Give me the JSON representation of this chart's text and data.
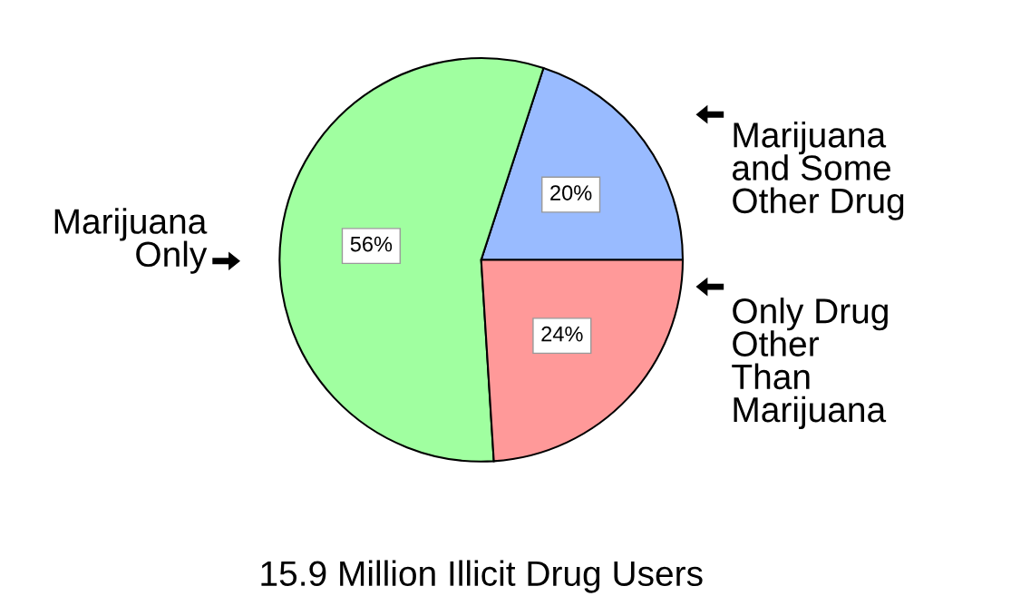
{
  "chart_data": {
    "type": "pie",
    "title": "15.9 Million Illicit Drug Users",
    "categories": [
      "Marijuana\nand Some\nOther Drug",
      "Marijuana\nOnly",
      "Only Drug\nOther\nThan\nMarijuana"
    ],
    "values": [
      20,
      56,
      24
    ],
    "colors": [
      "#99bbff",
      "#a0ffa0",
      "#ff9999"
    ],
    "value_labels": [
      "20%",
      "56%",
      "24%"
    ],
    "legend": false
  }
}
